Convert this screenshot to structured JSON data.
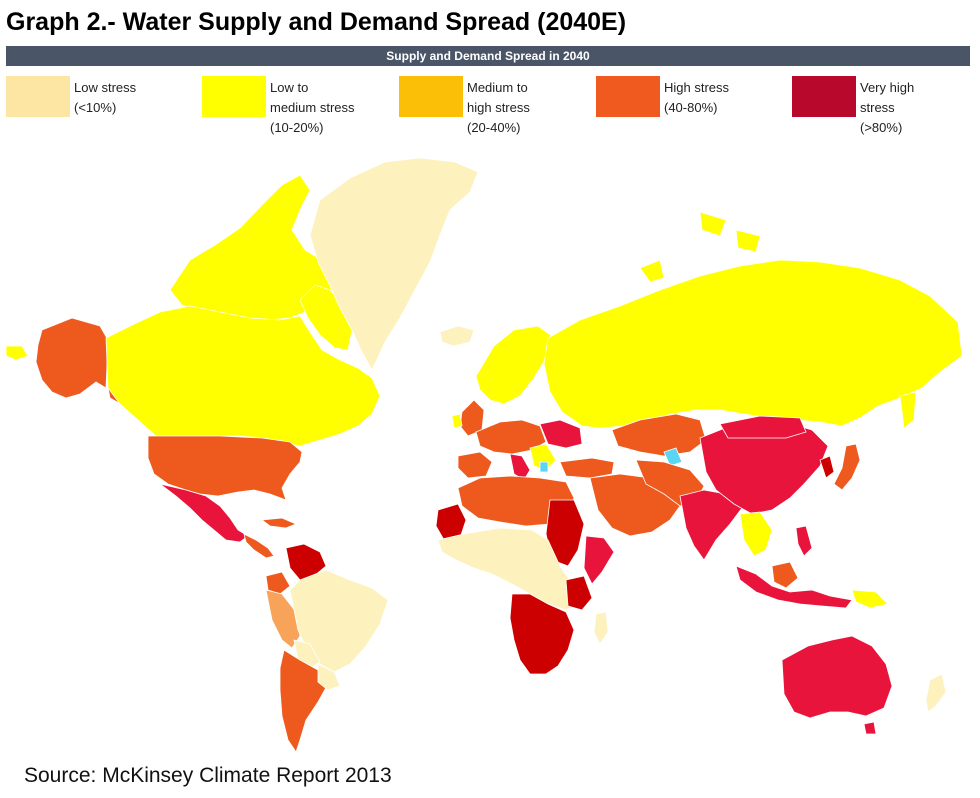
{
  "title": "Graph 2.- Water Supply and Demand Spread (2040E)",
  "banner": "Supply and Demand Spread in 2040",
  "legend": [
    {
      "label": "Low stress\n(<10%)",
      "color": "#fde5a4"
    },
    {
      "label": "Low to\nmedium stress\n(10-20%)",
      "color": "#ffff00"
    },
    {
      "label": "Medium to\nhigh stress\n(20-40%)",
      "color": "#fbbf07"
    },
    {
      "label": "High stress\n(40-80%)",
      "color": "#f05a1f"
    },
    {
      "label": "Very high\nstress\n(>80%)",
      "color": "#b8092c"
    }
  ],
  "colors": {
    "low": "#fdf1bd",
    "low_medium": "#ffff00",
    "medium_high": "#f7a35a",
    "high": "#ee5a1e",
    "very_high_red": "#e8143c",
    "very_high_dark": "#cc0000",
    "water_accent": "#5ad5f2"
  },
  "source": "Source: McKinsey Climate Report 2013"
}
